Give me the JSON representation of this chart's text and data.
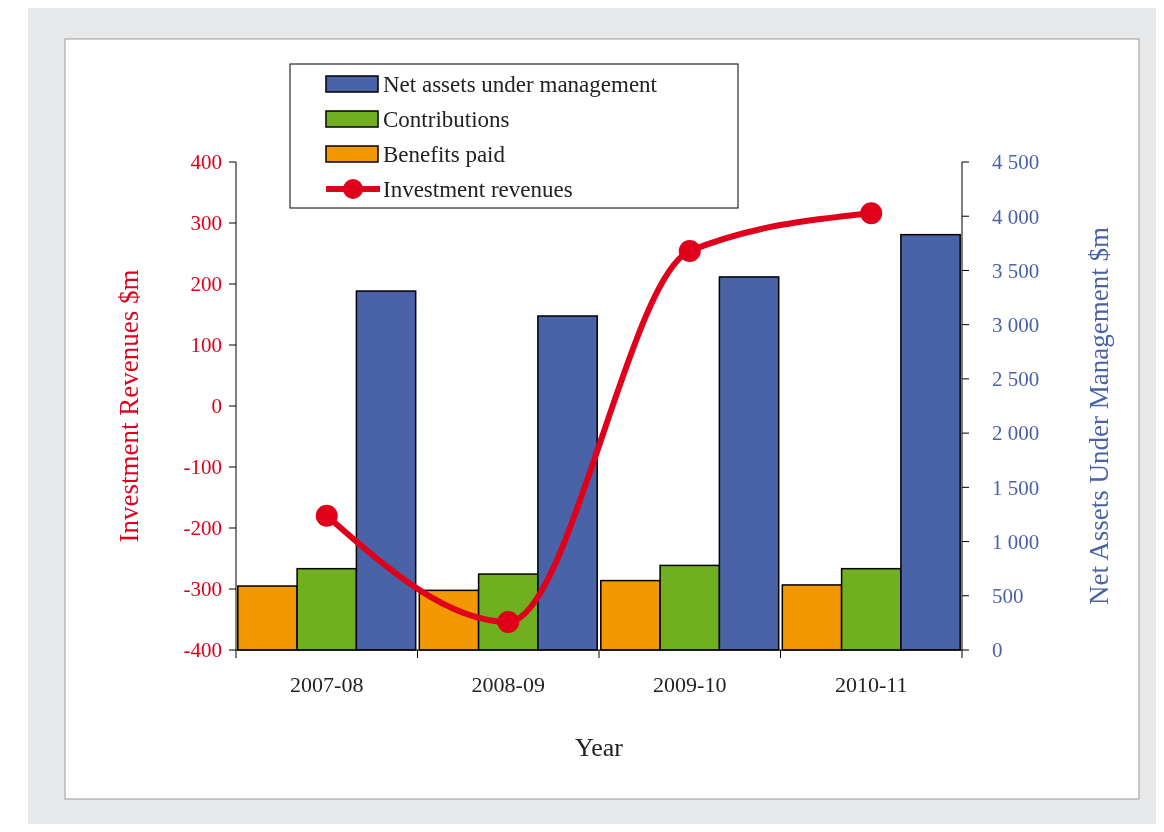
{
  "chart_data": {
    "type": "bar",
    "xlabel": "Year",
    "ylabel": "Investment Revenues $m",
    "y2label": "Net Assets Under Management $m",
    "categories": [
      "2007-08",
      "2008-09",
      "2009-10",
      "2010-11"
    ],
    "series": [
      {
        "name": "Benefits paid",
        "color": "#f39800",
        "axis": "y2",
        "values": [
          590,
          550,
          640,
          600
        ]
      },
      {
        "name": "Contributions",
        "color": "#70b020",
        "axis": "y2",
        "values": [
          750,
          700,
          780,
          750
        ]
      },
      {
        "name": "Net assets under management",
        "color": "#4a62a8",
        "axis": "y2",
        "values": [
          3310,
          3080,
          3440,
          3830
        ]
      },
      {
        "name": "Investment revenues",
        "type": "line",
        "color": "#e0001b",
        "marker": "circle",
        "values": [
          -180,
          -354,
          254,
          316
        ]
      }
    ],
    "ylim": [
      -400,
      400
    ],
    "yticks": [
      -400,
      -300,
      -200,
      -100,
      0,
      100,
      200,
      300,
      400
    ],
    "y2lim": [
      0,
      4500
    ],
    "y2ticks": [
      0,
      500,
      {
        "value": 1000,
        "label": "1 000"
      },
      {
        "value": 1500,
        "label": "1 500"
      },
      {
        "value": 2000,
        "label": "2 000"
      },
      {
        "value": 2500,
        "label": "2 500"
      },
      {
        "value": 3000,
        "label": "3 000"
      },
      {
        "value": 3500,
        "label": "3 500"
      },
      {
        "value": 4000,
        "label": "4 000"
      },
      {
        "value": 4500,
        "label": "4 500"
      }
    ],
    "grid": false,
    "legend": "top"
  }
}
